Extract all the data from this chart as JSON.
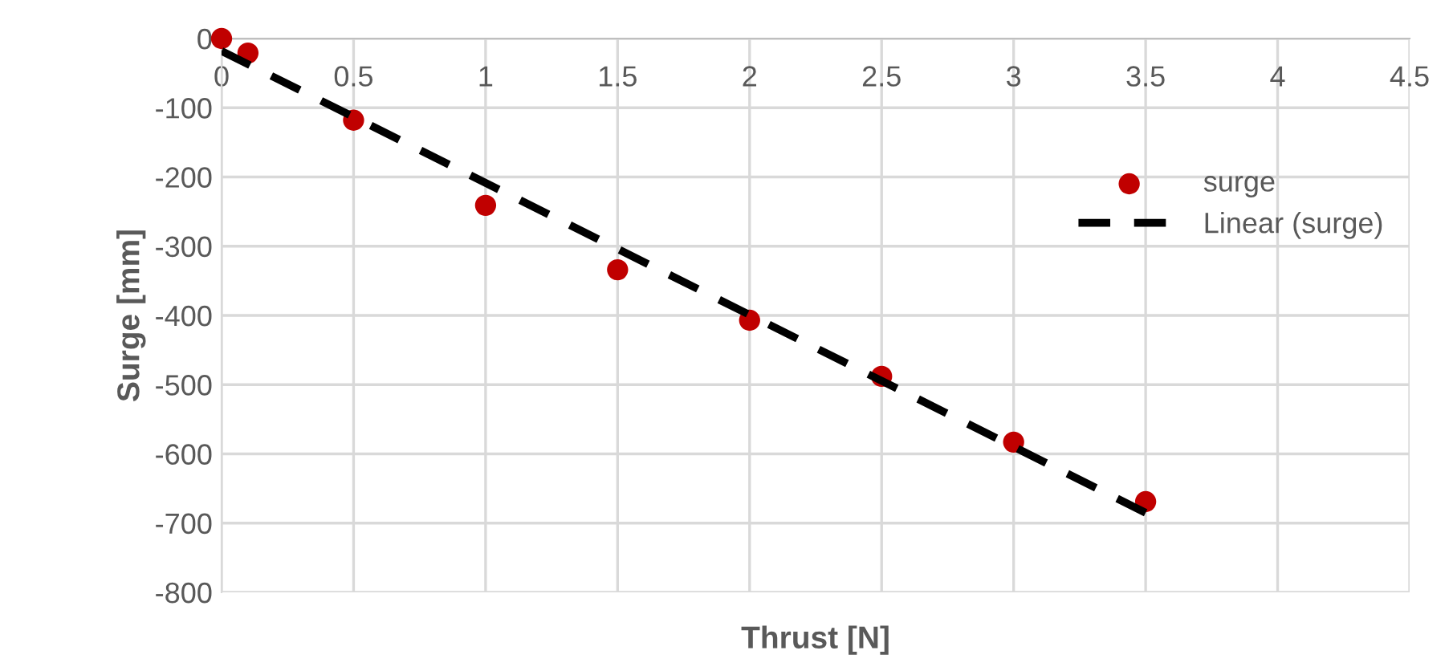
{
  "chart_data": {
    "type": "scatter",
    "xlabel": "Thrust [N]",
    "ylabel": "Surge [mm]",
    "xlim": [
      0,
      4.5
    ],
    "xticks": [
      0,
      0.5,
      1,
      1.5,
      2,
      2.5,
      3,
      3.5,
      4,
      4.5
    ],
    "ylim": [
      -800,
      0
    ],
    "yticks": [
      -800,
      -700,
      -600,
      -500,
      -400,
      -300,
      -200,
      -100,
      0
    ],
    "grid": true,
    "legend": "right",
    "marker": "circle",
    "series": [
      {
        "name": "surge",
        "color": "#c00000",
        "x": [
          0,
          0.1,
          0.5,
          1,
          1.5,
          2,
          2.5,
          3,
          3.5
        ],
        "values": [
          0,
          -21,
          -118,
          -241,
          -334,
          -407,
          -488,
          -583,
          -669
        ]
      },
      {
        "name": "Linear (surge)",
        "type": "line",
        "color": "#000000",
        "line_style": "dashed",
        "marker": "none",
        "x": [
          0,
          3.5
        ],
        "values": [
          -18,
          -685
        ]
      }
    ]
  }
}
